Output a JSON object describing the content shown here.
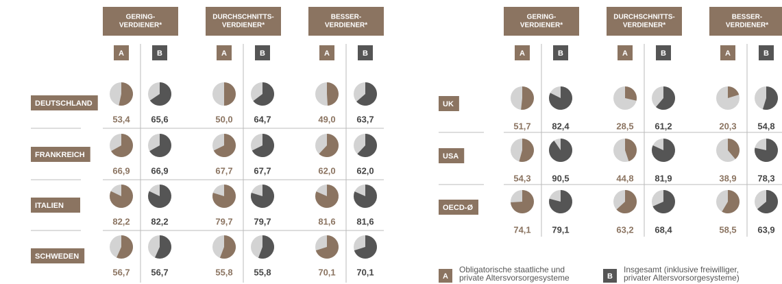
{
  "columns": [
    "A",
    "B"
  ],
  "panels": [
    {
      "groups": [
        {
          "lines": [
            "GERING-",
            "VERDIENER*"
          ]
        },
        {
          "lines": [
            "DURCHSCHNITTS-",
            "VERDIENER*"
          ]
        },
        {
          "lines": [
            "BESSER-",
            "VERDIENER*"
          ]
        }
      ],
      "rows": [
        {
          "country": "DEUTSCHLAND",
          "values": [
            53.4,
            65.6,
            50.0,
            64.7,
            49.0,
            63.7
          ],
          "value_labels": [
            "53,4",
            "65,6",
            "50,0",
            "64,7",
            "49,0",
            "63,7"
          ]
        },
        {
          "country": "FRANKREICH",
          "values": [
            66.9,
            66.9,
            67.7,
            67.7,
            62.0,
            62.0
          ],
          "value_labels": [
            "66,9",
            "66,9",
            "67,7",
            "67,7",
            "62,0",
            "62,0"
          ]
        },
        {
          "country": "ITALIEN",
          "values": [
            82.2,
            82.2,
            79.7,
            79.7,
            81.6,
            81.6
          ],
          "value_labels": [
            "82,2",
            "82,2",
            "79,7",
            "79,7",
            "81,6",
            "81,6"
          ]
        },
        {
          "country": "SCHWEDEN",
          "values": [
            56.7,
            56.7,
            55.8,
            55.8,
            70.1,
            70.1
          ],
          "value_labels": [
            "56,7",
            "56,7",
            "55,8",
            "55,8",
            "70,1",
            "70,1"
          ]
        }
      ]
    },
    {
      "groups": [
        {
          "lines": [
            "GERING-",
            "VERDIENER*"
          ]
        },
        {
          "lines": [
            "DURCHSCHNITTS-",
            "VERDIENER*"
          ]
        },
        {
          "lines": [
            "BESSER-",
            "VERDIENER*"
          ]
        }
      ],
      "rows": [
        {
          "country": "UK",
          "values": [
            51.7,
            82.4,
            28.5,
            61.2,
            20.3,
            54.8
          ],
          "value_labels": [
            "51,7",
            "82,4",
            "28,5",
            "61,2",
            "20,3",
            "54,8"
          ]
        },
        {
          "country": "USA",
          "values": [
            54.3,
            90.5,
            44.8,
            81.9,
            38.9,
            78.3
          ],
          "value_labels": [
            "54,3",
            "90,5",
            "44,8",
            "81,9",
            "38,9",
            "78,3"
          ]
        },
        {
          "country": "OECD-Ø",
          "values": [
            74.1,
            79.1,
            63.2,
            68.4,
            58.5,
            63.9
          ],
          "value_labels": [
            "74,1",
            "79,1",
            "63,2",
            "68,4",
            "58,5",
            "63,9"
          ]
        }
      ]
    }
  ],
  "legend": [
    {
      "lines": [
        "Obligatorische staatliche und",
        "private Altersvorsorgesysteme"
      ]
    },
    {
      "lines": [
        "Insgesamt (inklusive freiwilliger,",
        "privater Altersvorsorgesysteme)"
      ]
    }
  ]
}
